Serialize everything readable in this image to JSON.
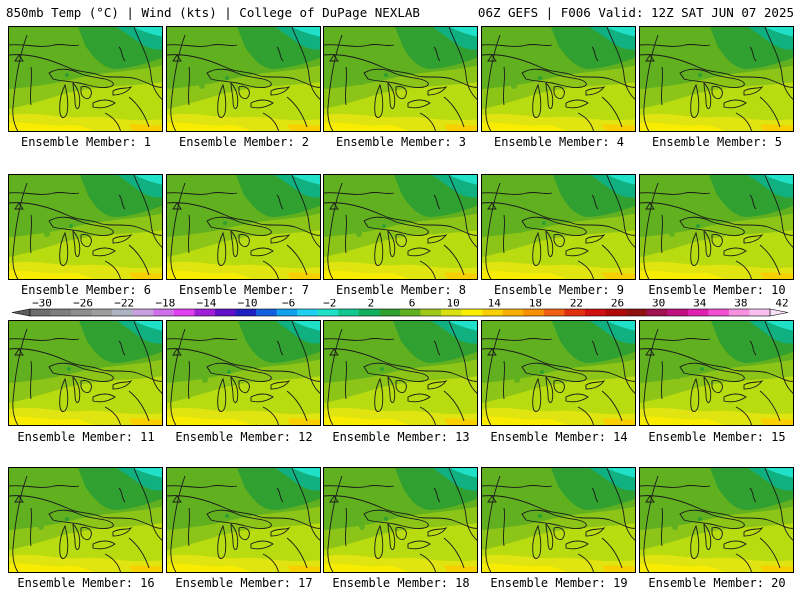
{
  "header": {
    "left": "850mb Temp (°C) | Wind (kts) | College of DuPage NEXLAB",
    "right": "06Z GEFS | F006 Valid: 12Z SAT JUN 07 2025"
  },
  "panels": [
    {
      "label": "Ensemble Member: 1"
    },
    {
      "label": "Ensemble Member: 2"
    },
    {
      "label": "Ensemble Member: 3"
    },
    {
      "label": "Ensemble Member: 4"
    },
    {
      "label": "Ensemble Member: 5"
    },
    {
      "label": "Ensemble Member: 6"
    },
    {
      "label": "Ensemble Member: 7"
    },
    {
      "label": "Ensemble Member: 8"
    },
    {
      "label": "Ensemble Member: 9"
    },
    {
      "label": "Ensemble Member: 10"
    },
    {
      "label": "Ensemble Member: 11"
    },
    {
      "label": "Ensemble Member: 12"
    },
    {
      "label": "Ensemble Member: 13"
    },
    {
      "label": "Ensemble Member: 14"
    },
    {
      "label": "Ensemble Member: 15"
    },
    {
      "label": "Ensemble Member: 16"
    },
    {
      "label": "Ensemble Member: 17"
    },
    {
      "label": "Ensemble Member: 18"
    },
    {
      "label": "Ensemble Member: 19"
    },
    {
      "label": "Ensemble Member: 20"
    }
  ],
  "colorbar": {
    "labels": [
      "-30",
      "-26",
      "-22",
      "-18",
      "-14",
      "-10",
      "-6",
      "-2",
      "2",
      "6",
      "10",
      "14",
      "18",
      "22",
      "26",
      "30",
      "34",
      "38",
      "42"
    ],
    "colors": [
      "#6e6e6e",
      "#7e7e7e",
      "#8e8e8e",
      "#9e9e9e",
      "#aeb4c4",
      "#c8a0e0",
      "#d070e8",
      "#e040f0",
      "#a020d8",
      "#6010c8",
      "#2020c0",
      "#1060e0",
      "#10a0f0",
      "#20d0f0",
      "#20e0c8",
      "#10c890",
      "#10b060",
      "#30a030",
      "#60b020",
      "#a0c818",
      "#d8e010",
      "#f8f000",
      "#f8d000",
      "#f8b000",
      "#f89000",
      "#f06010",
      "#e03010",
      "#d01010",
      "#b00808",
      "#901010",
      "#a01050",
      "#c01080",
      "#e020b0",
      "#f050d0",
      "#f890e0",
      "#f8c0f0"
    ]
  }
}
